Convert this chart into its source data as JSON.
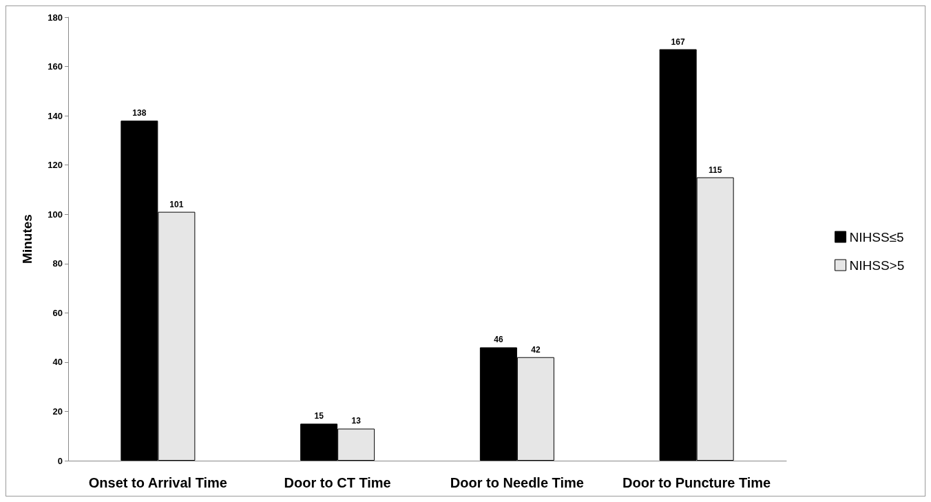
{
  "chart_data": {
    "type": "bar",
    "ylabel": "Minutes",
    "categories": [
      "Onset to Arrival Time",
      "Door to CT Time",
      "Door to Needle Time",
      "Door to Puncture Time"
    ],
    "series": [
      {
        "name": "NIHSS≤5",
        "color": "#000000",
        "values": [
          138,
          15,
          46,
          167
        ]
      },
      {
        "name": "NIHSS>5",
        "color": "#e6e6e6",
        "values": [
          101,
          13,
          42,
          115
        ]
      }
    ],
    "ylim": [
      0,
      180
    ],
    "yticks": [
      0,
      20,
      40,
      60,
      80,
      100,
      120,
      140,
      160,
      180
    ],
    "data_labels": true,
    "grid": false,
    "legend": "right"
  }
}
